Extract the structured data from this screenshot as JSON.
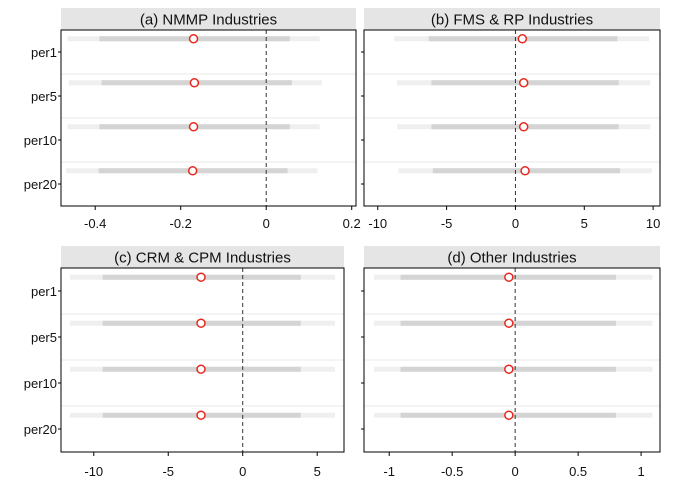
{
  "chart_data": [
    {
      "type": "interval",
      "title": "(a) NMMP Industries",
      "categories": [
        "per1",
        "per5",
        "per10",
        "per20"
      ],
      "xlim": [
        -0.48,
        0.21
      ],
      "xticks": [
        -0.4,
        -0.2,
        0,
        0.2
      ],
      "xtick_labels": [
        "-0.4",
        "-0.2",
        "0",
        "0.2"
      ],
      "reference_line": 0,
      "series": [
        {
          "category": "per1",
          "point": -0.17,
          "inner": [
            -0.39,
            0.055
          ],
          "outer": [
            -0.465,
            0.125
          ]
        },
        {
          "category": "per5",
          "point": -0.168,
          "inner": [
            -0.385,
            0.06
          ],
          "outer": [
            -0.462,
            0.13
          ]
        },
        {
          "category": "per10",
          "point": -0.17,
          "inner": [
            -0.39,
            0.055
          ],
          "outer": [
            -0.465,
            0.125
          ]
        },
        {
          "category": "per20",
          "point": -0.172,
          "inner": [
            -0.392,
            0.05
          ],
          "outer": [
            -0.468,
            0.12
          ]
        }
      ]
    },
    {
      "type": "interval",
      "title": "(b) FMS & RP Industries",
      "categories": [
        "per1",
        "per5",
        "per10",
        "per20"
      ],
      "xlim": [
        -11,
        10.5
      ],
      "xticks": [
        -10,
        -5,
        0,
        5,
        10
      ],
      "xtick_labels": [
        "-10",
        "-5",
        "0",
        "5",
        "10"
      ],
      "reference_line": 0,
      "series": [
        {
          "category": "per1",
          "point": 0.5,
          "inner": [
            -6.3,
            7.4
          ],
          "outer": [
            -8.8,
            9.7
          ]
        },
        {
          "category": "per5",
          "point": 0.6,
          "inner": [
            -6.1,
            7.5
          ],
          "outer": [
            -8.6,
            9.8
          ]
        },
        {
          "category": "per10",
          "point": 0.6,
          "inner": [
            -6.1,
            7.5
          ],
          "outer": [
            -8.6,
            9.8
          ]
        },
        {
          "category": "per20",
          "point": 0.7,
          "inner": [
            -6.0,
            7.6
          ],
          "outer": [
            -8.5,
            9.9
          ]
        }
      ]
    },
    {
      "type": "interval",
      "title": "(c) CRM & CPM Industries",
      "categories": [
        "per1",
        "per5",
        "per10",
        "per20"
      ],
      "xlim": [
        -12.2,
        6.8
      ],
      "xticks": [
        -10,
        -5,
        0,
        5
      ],
      "xtick_labels": [
        "-10",
        "-5",
        "0",
        "5"
      ],
      "reference_line": 0,
      "series": [
        {
          "category": "per1",
          "point": -2.8,
          "inner": [
            -9.4,
            3.9
          ],
          "outer": [
            -11.6,
            6.2
          ]
        },
        {
          "category": "per5",
          "point": -2.8,
          "inner": [
            -9.4,
            3.9
          ],
          "outer": [
            -11.6,
            6.2
          ]
        },
        {
          "category": "per10",
          "point": -2.8,
          "inner": [
            -9.4,
            3.9
          ],
          "outer": [
            -11.6,
            6.2
          ]
        },
        {
          "category": "per20",
          "point": -2.8,
          "inner": [
            -9.4,
            3.9
          ],
          "outer": [
            -11.6,
            6.2
          ]
        }
      ]
    },
    {
      "type": "interval",
      "title": "(d) Other Industries",
      "categories": [
        "per1",
        "per5",
        "per10",
        "per20"
      ],
      "xlim": [
        -1.2,
        1.15
      ],
      "xticks": [
        -1,
        -0.5,
        0,
        0.5,
        1
      ],
      "xtick_labels": [
        "-1",
        "-0.5",
        "0",
        "0.5",
        "1"
      ],
      "reference_line": 0,
      "series": [
        {
          "category": "per1",
          "point": -0.05,
          "inner": [
            -0.91,
            0.8
          ],
          "outer": [
            -1.12,
            1.09
          ]
        },
        {
          "category": "per5",
          "point": -0.05,
          "inner": [
            -0.91,
            0.8
          ],
          "outer": [
            -1.12,
            1.09
          ]
        },
        {
          "category": "per10",
          "point": -0.05,
          "inner": [
            -0.91,
            0.8
          ],
          "outer": [
            -1.12,
            1.09
          ]
        },
        {
          "category": "per20",
          "point": -0.05,
          "inner": [
            -0.91,
            0.8
          ],
          "outer": [
            -1.12,
            1.09
          ]
        }
      ]
    }
  ],
  "colors": {
    "strip": "#e5e5e5",
    "inner_band": "#d4d4d4",
    "outer_band": "#efefef",
    "point": "#e8271c",
    "frame": "#000000",
    "gridline": "#eaeaea",
    "reference_line": "#333333"
  }
}
